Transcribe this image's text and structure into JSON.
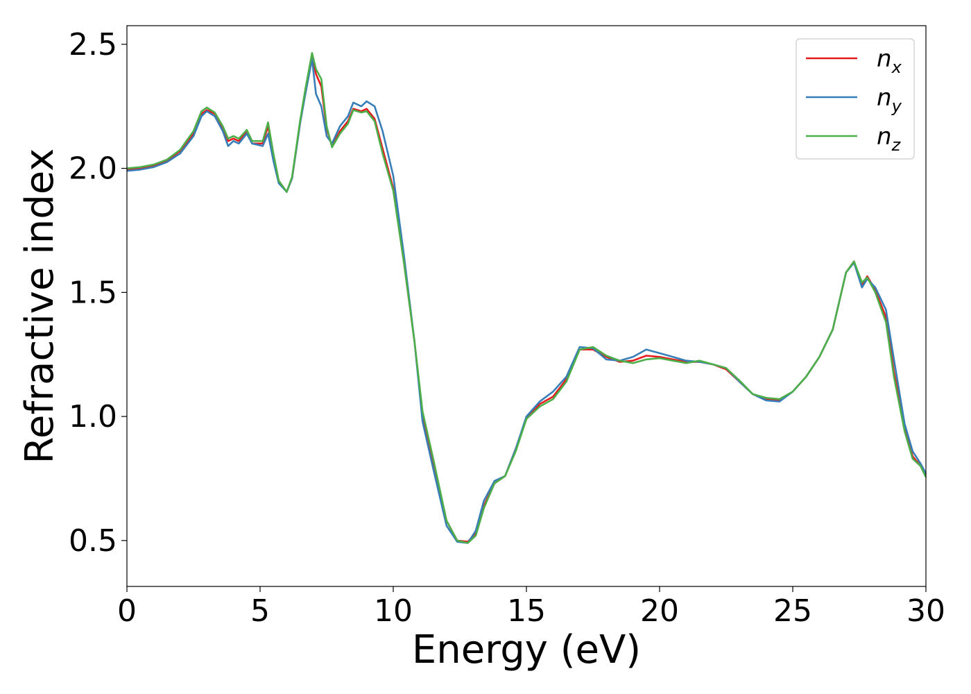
{
  "chart_data": {
    "type": "line",
    "title": "",
    "xlabel": "Energy (eV)",
    "ylabel": "Refractive index",
    "xlim": [
      0,
      30
    ],
    "ylim": [
      0.315,
      2.575
    ],
    "xticks": [
      0,
      5,
      10,
      15,
      20,
      25,
      30
    ],
    "xtick_labels": [
      "0",
      "5",
      "10",
      "15",
      "20",
      "25",
      "30"
    ],
    "yticks": [
      0.5,
      1.0,
      1.5,
      2.0,
      2.5
    ],
    "ytick_labels": [
      "0.5",
      "1.0",
      "1.5",
      "2.0",
      "2.5"
    ],
    "grid": false,
    "legend_position": "top-right",
    "series": [
      {
        "name": "n",
        "subscript": "x",
        "color": "#e41a1c",
        "points": [
          [
            0,
            1.995
          ],
          [
            0.5,
            2.0
          ],
          [
            1,
            2.01
          ],
          [
            1.5,
            2.03
          ],
          [
            2,
            2.07
          ],
          [
            2.5,
            2.14
          ],
          [
            2.8,
            2.22
          ],
          [
            3,
            2.235
          ],
          [
            3.3,
            2.22
          ],
          [
            3.6,
            2.16
          ],
          [
            3.8,
            2.11
          ],
          [
            4,
            2.12
          ],
          [
            4.2,
            2.11
          ],
          [
            4.5,
            2.15
          ],
          [
            4.7,
            2.1
          ],
          [
            5.1,
            2.1
          ],
          [
            5.3,
            2.17
          ],
          [
            5.5,
            2.05
          ],
          [
            5.7,
            1.95
          ],
          [
            6,
            1.905
          ],
          [
            6.2,
            1.96
          ],
          [
            6.5,
            2.18
          ],
          [
            6.7,
            2.31
          ],
          [
            6.95,
            2.45
          ],
          [
            7.1,
            2.38
          ],
          [
            7.3,
            2.33
          ],
          [
            7.5,
            2.16
          ],
          [
            7.7,
            2.09
          ],
          [
            8,
            2.15
          ],
          [
            8.3,
            2.19
          ],
          [
            8.5,
            2.24
          ],
          [
            8.8,
            2.23
          ],
          [
            9,
            2.24
          ],
          [
            9.3,
            2.2
          ],
          [
            9.6,
            2.08
          ],
          [
            10,
            1.92
          ],
          [
            10.4,
            1.62
          ],
          [
            10.8,
            1.3
          ],
          [
            11.1,
            1.0
          ],
          [
            11.5,
            0.82
          ],
          [
            12,
            0.58
          ],
          [
            12.4,
            0.5
          ],
          [
            12.8,
            0.495
          ],
          [
            13.1,
            0.53
          ],
          [
            13.4,
            0.64
          ],
          [
            13.8,
            0.73
          ],
          [
            14.2,
            0.76
          ],
          [
            14.6,
            0.87
          ],
          [
            15,
            0.99
          ],
          [
            15.5,
            1.05
          ],
          [
            16,
            1.08
          ],
          [
            16.5,
            1.15
          ],
          [
            17,
            1.27
          ],
          [
            17.5,
            1.27
          ],
          [
            18,
            1.24
          ],
          [
            18.5,
            1.22
          ],
          [
            19,
            1.225
          ],
          [
            19.5,
            1.245
          ],
          [
            20,
            1.24
          ],
          [
            20.5,
            1.23
          ],
          [
            21,
            1.22
          ],
          [
            21.5,
            1.22
          ],
          [
            22,
            1.21
          ],
          [
            22.5,
            1.19
          ],
          [
            23,
            1.14
          ],
          [
            23.5,
            1.09
          ],
          [
            24,
            1.07
          ],
          [
            24.5,
            1.065
          ],
          [
            25,
            1.1
          ],
          [
            25.5,
            1.16
          ],
          [
            26,
            1.24
          ],
          [
            26.5,
            1.35
          ],
          [
            27,
            1.58
          ],
          [
            27.3,
            1.625
          ],
          [
            27.6,
            1.53
          ],
          [
            27.8,
            1.565
          ],
          [
            28.1,
            1.51
          ],
          [
            28.5,
            1.4
          ],
          [
            28.8,
            1.18
          ],
          [
            29.2,
            0.95
          ],
          [
            29.5,
            0.84
          ],
          [
            29.8,
            0.8
          ],
          [
            30,
            0.765
          ]
        ]
      },
      {
        "name": "n",
        "subscript": "y",
        "color": "#377eb8",
        "points": [
          [
            0,
            1.99
          ],
          [
            0.5,
            1.995
          ],
          [
            1,
            2.005
          ],
          [
            1.5,
            2.025
          ],
          [
            2,
            2.06
          ],
          [
            2.5,
            2.13
          ],
          [
            2.8,
            2.21
          ],
          [
            3,
            2.23
          ],
          [
            3.3,
            2.21
          ],
          [
            3.6,
            2.15
          ],
          [
            3.8,
            2.09
          ],
          [
            4,
            2.11
          ],
          [
            4.2,
            2.1
          ],
          [
            4.5,
            2.14
          ],
          [
            4.7,
            2.1
          ],
          [
            5.1,
            2.09
          ],
          [
            5.3,
            2.14
          ],
          [
            5.5,
            2.03
          ],
          [
            5.7,
            1.94
          ],
          [
            6,
            1.905
          ],
          [
            6.2,
            1.96
          ],
          [
            6.5,
            2.18
          ],
          [
            6.7,
            2.3
          ],
          [
            6.95,
            2.44
          ],
          [
            7.1,
            2.3
          ],
          [
            7.3,
            2.25
          ],
          [
            7.5,
            2.13
          ],
          [
            7.7,
            2.1
          ],
          [
            8,
            2.17
          ],
          [
            8.3,
            2.21
          ],
          [
            8.5,
            2.265
          ],
          [
            8.8,
            2.25
          ],
          [
            9,
            2.27
          ],
          [
            9.3,
            2.25
          ],
          [
            9.6,
            2.15
          ],
          [
            10,
            1.97
          ],
          [
            10.4,
            1.65
          ],
          [
            10.8,
            1.3
          ],
          [
            11.1,
            0.98
          ],
          [
            11.5,
            0.79
          ],
          [
            12,
            0.56
          ],
          [
            12.4,
            0.495
          ],
          [
            12.8,
            0.49
          ],
          [
            13.1,
            0.54
          ],
          [
            13.4,
            0.66
          ],
          [
            13.8,
            0.74
          ],
          [
            14.2,
            0.76
          ],
          [
            14.6,
            0.87
          ],
          [
            15,
            1.0
          ],
          [
            15.5,
            1.06
          ],
          [
            16,
            1.1
          ],
          [
            16.5,
            1.16
          ],
          [
            17,
            1.28
          ],
          [
            17.5,
            1.275
          ],
          [
            18,
            1.23
          ],
          [
            18.5,
            1.225
          ],
          [
            19,
            1.24
          ],
          [
            19.5,
            1.27
          ],
          [
            20,
            1.255
          ],
          [
            20.5,
            1.24
          ],
          [
            21,
            1.225
          ],
          [
            21.5,
            1.22
          ],
          [
            22,
            1.21
          ],
          [
            22.5,
            1.195
          ],
          [
            23,
            1.14
          ],
          [
            23.5,
            1.09
          ],
          [
            24,
            1.065
          ],
          [
            24.5,
            1.06
          ],
          [
            25,
            1.1
          ],
          [
            25.5,
            1.16
          ],
          [
            26,
            1.24
          ],
          [
            26.5,
            1.35
          ],
          [
            27,
            1.58
          ],
          [
            27.3,
            1.62
          ],
          [
            27.6,
            1.52
          ],
          [
            27.8,
            1.555
          ],
          [
            28.1,
            1.52
          ],
          [
            28.5,
            1.43
          ],
          [
            28.8,
            1.23
          ],
          [
            29.2,
            0.97
          ],
          [
            29.5,
            0.86
          ],
          [
            29.8,
            0.81
          ],
          [
            30,
            0.77
          ]
        ]
      },
      {
        "name": "n",
        "subscript": "z",
        "color": "#4daf4a",
        "points": [
          [
            0,
            2.0
          ],
          [
            0.5,
            2.005
          ],
          [
            1,
            2.015
          ],
          [
            1.5,
            2.035
          ],
          [
            2,
            2.075
          ],
          [
            2.5,
            2.15
          ],
          [
            2.8,
            2.23
          ],
          [
            3,
            2.245
          ],
          [
            3.3,
            2.225
          ],
          [
            3.6,
            2.17
          ],
          [
            3.8,
            2.12
          ],
          [
            4,
            2.13
          ],
          [
            4.2,
            2.12
          ],
          [
            4.5,
            2.155
          ],
          [
            4.7,
            2.11
          ],
          [
            5.1,
            2.11
          ],
          [
            5.3,
            2.185
          ],
          [
            5.5,
            2.06
          ],
          [
            5.7,
            1.95
          ],
          [
            6,
            1.905
          ],
          [
            6.2,
            1.965
          ],
          [
            6.5,
            2.19
          ],
          [
            6.7,
            2.32
          ],
          [
            6.95,
            2.465
          ],
          [
            7.1,
            2.4
          ],
          [
            7.3,
            2.36
          ],
          [
            7.5,
            2.17
          ],
          [
            7.7,
            2.085
          ],
          [
            8,
            2.14
          ],
          [
            8.3,
            2.18
          ],
          [
            8.5,
            2.235
          ],
          [
            8.8,
            2.225
          ],
          [
            9,
            2.23
          ],
          [
            9.3,
            2.19
          ],
          [
            9.6,
            2.06
          ],
          [
            10,
            1.91
          ],
          [
            10.4,
            1.62
          ],
          [
            10.8,
            1.3
          ],
          [
            11.1,
            1.02
          ],
          [
            11.5,
            0.83
          ],
          [
            12,
            0.58
          ],
          [
            12.4,
            0.5
          ],
          [
            12.8,
            0.49
          ],
          [
            13.1,
            0.52
          ],
          [
            13.4,
            0.63
          ],
          [
            13.8,
            0.73
          ],
          [
            14.2,
            0.76
          ],
          [
            14.6,
            0.86
          ],
          [
            15,
            0.99
          ],
          [
            15.5,
            1.04
          ],
          [
            16,
            1.07
          ],
          [
            16.5,
            1.14
          ],
          [
            17,
            1.27
          ],
          [
            17.5,
            1.28
          ],
          [
            18,
            1.245
          ],
          [
            18.5,
            1.225
          ],
          [
            19,
            1.215
          ],
          [
            19.5,
            1.23
          ],
          [
            20,
            1.235
          ],
          [
            20.5,
            1.225
          ],
          [
            21,
            1.215
          ],
          [
            21.5,
            1.225
          ],
          [
            22,
            1.21
          ],
          [
            22.5,
            1.195
          ],
          [
            23,
            1.145
          ],
          [
            23.5,
            1.09
          ],
          [
            24,
            1.075
          ],
          [
            24.5,
            1.07
          ],
          [
            25,
            1.1
          ],
          [
            25.5,
            1.16
          ],
          [
            26,
            1.24
          ],
          [
            26.5,
            1.35
          ],
          [
            27,
            1.58
          ],
          [
            27.3,
            1.625
          ],
          [
            27.6,
            1.54
          ],
          [
            27.8,
            1.56
          ],
          [
            28.1,
            1.5
          ],
          [
            28.5,
            1.38
          ],
          [
            28.8,
            1.16
          ],
          [
            29.2,
            0.94
          ],
          [
            29.5,
            0.83
          ],
          [
            29.8,
            0.8
          ],
          [
            30,
            0.755
          ]
        ]
      }
    ]
  }
}
